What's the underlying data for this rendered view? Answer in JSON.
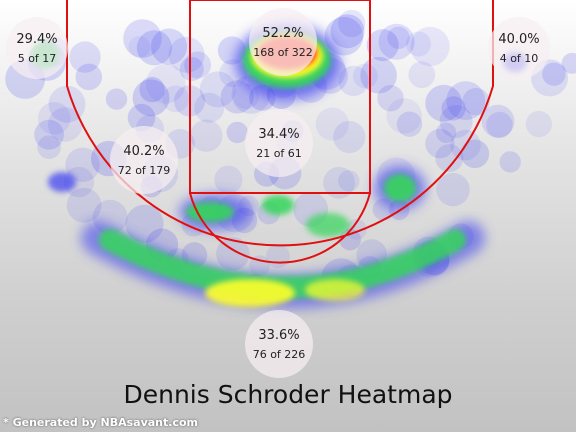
{
  "chart_data": {
    "type": "heatmap",
    "title": "Dennis Schroder Heatmap",
    "footnote": "* Generated by NBAsavant.com",
    "zones": [
      {
        "id": "left-corner-3",
        "pct": "29.4%",
        "made": 5,
        "attempts": 17,
        "count_label": "5 of 17"
      },
      {
        "id": "restricted-area",
        "pct": "52.2%",
        "made": 168,
        "attempts": 322,
        "count_label": "168 of 322"
      },
      {
        "id": "right-corner-3",
        "pct": "40.0%",
        "made": 4,
        "attempts": 10,
        "count_label": "4 of 10"
      },
      {
        "id": "left-midrange",
        "pct": "40.2%",
        "made": 72,
        "attempts": 179,
        "count_label": "72 of 179"
      },
      {
        "id": "paint",
        "pct": "34.4%",
        "made": 21,
        "attempts": 61,
        "count_label": "21 of 61"
      },
      {
        "id": "above-break-3",
        "pct": "33.6%",
        "made": 76,
        "attempts": 226,
        "count_label": "76 of 226"
      }
    ],
    "colors": {
      "court_lines": "#e01010",
      "heat_low": "#3a3cf0",
      "heat_mid": "#36d65a",
      "heat_high": "#ffff2a",
      "heat_hot": "#ff3b1a",
      "bubble_fill": "#f6eff3"
    }
  }
}
